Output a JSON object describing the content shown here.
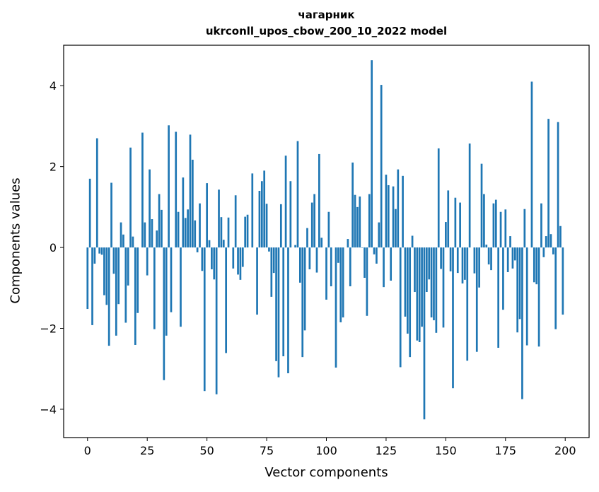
{
  "chart_data": {
    "type": "bar",
    "title_line1": "чагарник",
    "title_line2": "ukrconll_upos_cbow_200_10_2022 model",
    "xlabel": "Vector components",
    "ylabel": "Components values",
    "xlim": [
      -10,
      210
    ],
    "ylim": [
      -4.7,
      5.0
    ],
    "xticks": [
      0,
      25,
      50,
      75,
      100,
      125,
      150,
      175,
      200
    ],
    "yticks": [
      -4,
      -2,
      0,
      2,
      4
    ],
    "ytick_labels": [
      "−4",
      "−2",
      "0",
      "2",
      "4"
    ],
    "bar_color": "#1f77b4",
    "values": [
      -1.52,
      1.7,
      -1.92,
      -0.4,
      2.7,
      -0.15,
      -0.18,
      -1.18,
      -1.42,
      -2.43,
      1.6,
      -0.65,
      -2.18,
      -1.4,
      0.62,
      0.32,
      -1.86,
      -0.94,
      2.47,
      0.27,
      -2.41,
      -1.62,
      0.0,
      2.84,
      0.62,
      -0.69,
      1.93,
      0.7,
      -2.02,
      0.42,
      1.32,
      0.93,
      -3.28,
      -2.18,
      3.02,
      -1.6,
      0.0,
      2.86,
      0.88,
      -1.96,
      1.73,
      0.73,
      0.94,
      2.79,
      2.17,
      0.67,
      -0.12,
      1.09,
      -0.58,
      -3.55,
      1.59,
      0.18,
      -0.54,
      -0.79,
      -3.63,
      1.43,
      0.75,
      0.19,
      -2.61,
      0.74,
      0.0,
      -0.52,
      1.29,
      -0.67,
      -0.8,
      -0.48,
      0.76,
      0.81,
      0.0,
      1.83,
      0.0,
      -1.66,
      1.4,
      1.64,
      1.9,
      1.08,
      -0.1,
      -1.22,
      -0.63,
      -2.81,
      -3.21,
      1.07,
      -2.69,
      2.27,
      -3.11,
      1.64,
      0.0,
      0.06,
      2.63,
      -0.87,
      -2.71,
      -2.05,
      0.48,
      -0.54,
      1.11,
      1.32,
      -0.62,
      2.31,
      0.24,
      0.0,
      -1.29,
      0.88,
      -0.96,
      0.0,
      -2.97,
      -0.38,
      -1.85,
      -1.73,
      0.0,
      0.21,
      -0.96,
      2.1,
      1.3,
      1.0,
      1.26,
      -0.01,
      -0.75,
      -1.69,
      1.32,
      4.63,
      -0.17,
      -0.4,
      0.62,
      4.02,
      -0.98,
      1.8,
      1.54,
      -0.82,
      1.51,
      0.95,
      1.93,
      -2.96,
      1.77,
      -1.71,
      -2.13,
      -2.71,
      0.29,
      -1.1,
      -2.3,
      -2.34,
      -1.96,
      -4.25,
      -1.1,
      -0.79,
      -1.73,
      -1.8,
      -2.11,
      2.45,
      -0.53,
      -1.98,
      0.63,
      1.41,
      -0.59,
      -3.48,
      1.23,
      -0.63,
      1.11,
      -0.89,
      -0.8,
      -2.8,
      2.57,
      0.0,
      -0.64,
      -2.58,
      -0.99,
      2.07,
      1.32,
      0.07,
      -0.42,
      -0.56,
      1.09,
      1.18,
      -2.48,
      0.88,
      -1.54,
      0.94,
      -0.61,
      0.28,
      -0.52,
      -0.32,
      -2.1,
      -1.77,
      -3.75,
      0.95,
      -2.42,
      0.0,
      4.1,
      -0.86,
      -0.91,
      -2.45,
      1.09,
      -0.24,
      0.28,
      3.18,
      0.33,
      -0.17,
      -2.02,
      3.1,
      0.53,
      -1.66
    ]
  }
}
